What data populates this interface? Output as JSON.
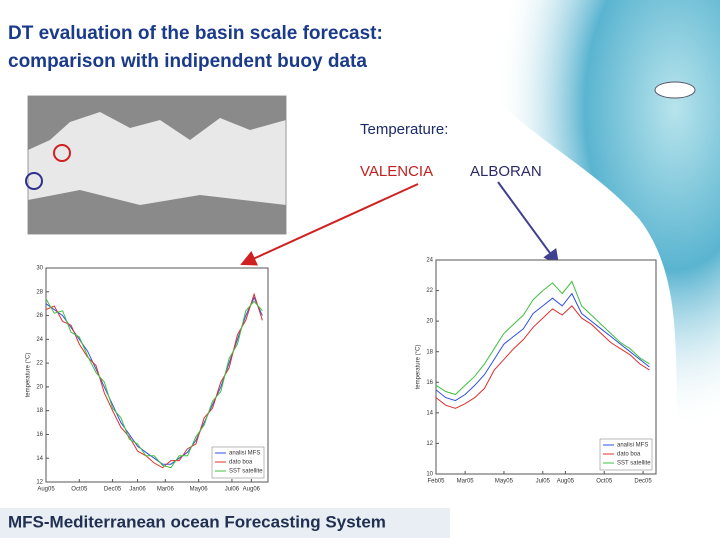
{
  "slide": {
    "title_lines": [
      "DT evaluation of the basin scale forecast:",
      "comparison with indipendent buoy data"
    ],
    "label_variable": "Temperature:",
    "label_left": "VALENCIA",
    "label_right": "ALBORAN",
    "footer": "MFS-Mediterranean ocean Forecasting System"
  },
  "chart_data": [
    {
      "type": "line",
      "ylabel": "temperature (°C)",
      "legend": "lower right",
      "grid": false,
      "x": [
        0,
        15,
        30,
        45,
        60,
        75,
        90,
        105,
        120,
        135,
        150,
        165,
        180,
        195,
        210,
        225,
        240,
        255,
        270,
        285,
        300,
        315,
        330,
        345,
        360,
        375,
        390
      ],
      "xlim": [
        0,
        400
      ],
      "ylim": [
        12,
        30
      ],
      "yticks": [
        12,
        14,
        16,
        18,
        20,
        22,
        24,
        26,
        28,
        30
      ],
      "xticks": [
        {
          "value": 0,
          "label": "Aug05"
        },
        {
          "value": 60,
          "label": "Oct05"
        },
        {
          "value": 120,
          "label": "Dec05"
        },
        {
          "value": 165,
          "label": "Jan06"
        },
        {
          "value": 215,
          "label": "Mar06"
        },
        {
          "value": 275,
          "label": "May06"
        },
        {
          "value": 335,
          "label": "Jul06"
        },
        {
          "value": 370,
          "label": "Aug06"
        }
      ],
      "series": [
        {
          "name": "analisi MFS",
          "color": "#3050e0",
          "values": [
            27,
            26.5,
            26,
            25,
            24,
            23,
            21.5,
            20,
            18.5,
            17,
            16,
            15,
            14.5,
            14,
            13.5,
            13.5,
            14,
            14.5,
            15.5,
            17,
            18.5,
            20,
            22,
            24,
            26,
            27.5,
            26
          ]
        },
        {
          "name": "dato boa",
          "color": "#e03030",
          "values": [
            26.5,
            26.8,
            25.5,
            25.2,
            23.6,
            22.5,
            21.8,
            19.5,
            18,
            16.6,
            15.8,
            14.6,
            14.2,
            13.6,
            13.2,
            13.8,
            13.8,
            14.8,
            15.2,
            17.4,
            18.2,
            20.4,
            21.6,
            24.4,
            25.6,
            27.8,
            25.6
          ]
        },
        {
          "name": "SST satellite",
          "color": "#40c040",
          "values": [
            27.4,
            26.2,
            26.4,
            24.6,
            24.2,
            22.6,
            21.2,
            20.4,
            18.2,
            17.4,
            15.6,
            15.2,
            14.2,
            14.2,
            13.4,
            13.2,
            14.2,
            14.2,
            15.8,
            16.8,
            18.8,
            19.6,
            22.4,
            23.6,
            26.4,
            27.2,
            26.4
          ]
        }
      ]
    },
    {
      "type": "line",
      "ylabel": "temperature (°C)",
      "legend": "lower right",
      "grid": false,
      "x": [
        0,
        15,
        30,
        45,
        60,
        75,
        90,
        105,
        120,
        135,
        150,
        165,
        180,
        195,
        210,
        225,
        240,
        255,
        270,
        285,
        300,
        315,
        330
      ],
      "xlim": [
        0,
        340
      ],
      "ylim": [
        10,
        24
      ],
      "yticks": [
        10,
        12,
        14,
        16,
        18,
        20,
        22,
        24
      ],
      "xticks": [
        {
          "value": 0,
          "label": "Feb05"
        },
        {
          "value": 45,
          "label": "Mar05"
        },
        {
          "value": 105,
          "label": "May05"
        },
        {
          "value": 165,
          "label": "Jul05"
        },
        {
          "value": 200,
          "label": "Aug05"
        },
        {
          "value": 260,
          "label": "Oct05"
        },
        {
          "value": 320,
          "label": "Dec05"
        }
      ],
      "series": [
        {
          "name": "analisi MFS",
          "color": "#3050e0",
          "values": [
            15.5,
            15,
            14.8,
            15.2,
            15.8,
            16.5,
            17.5,
            18.5,
            19,
            19.5,
            20.5,
            21,
            21.5,
            21,
            21.8,
            20.5,
            20,
            19.5,
            19,
            18.5,
            18,
            17.5,
            17
          ]
        },
        {
          "name": "dato boa",
          "color": "#e03030",
          "values": [
            15,
            14.5,
            14.3,
            14.6,
            15,
            15.6,
            16.8,
            17.5,
            18.2,
            18.8,
            19.6,
            20.2,
            20.8,
            20.4,
            21,
            20.2,
            19.8,
            19.2,
            18.6,
            18.2,
            17.8,
            17.2,
            16.8
          ]
        },
        {
          "name": "SST satellite",
          "color": "#40c040",
          "values": [
            15.8,
            15.4,
            15.2,
            15.8,
            16.4,
            17.2,
            18.2,
            19.2,
            19.8,
            20.4,
            21.4,
            22,
            22.5,
            21.8,
            22.6,
            21,
            20.4,
            19.8,
            19.2,
            18.6,
            18.2,
            17.6,
            17.2
          ]
        }
      ]
    }
  ]
}
